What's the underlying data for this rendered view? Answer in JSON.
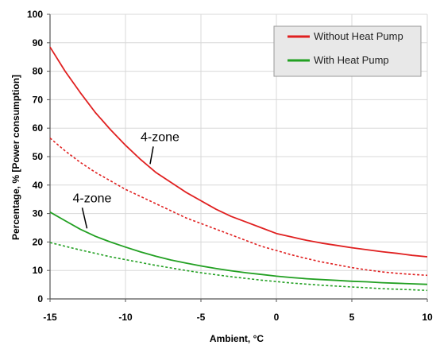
{
  "chart_data": {
    "type": "line",
    "title": "",
    "xlabel": "Ambient, °C",
    "ylabel": "Percentage, % [Power consumption]",
    "xlim": [
      -15,
      10
    ],
    "ylim": [
      0,
      100
    ],
    "xticks": [
      -15,
      -10,
      -5,
      0,
      5,
      10
    ],
    "yticks": [
      0,
      10,
      20,
      30,
      40,
      50,
      60,
      70,
      80,
      90,
      100
    ],
    "grid": true,
    "legend_position": "top-right",
    "legend": [
      {
        "label": "Without Heat Pump",
        "color": "#e02020"
      },
      {
        "label": "With Heat Pump",
        "color": "#22a022"
      }
    ],
    "annotations": [
      {
        "text": "4-zone",
        "x": -9,
        "y": 55.5
      },
      {
        "text": "4-zone",
        "x": -13.5,
        "y": 34
      }
    ],
    "series": [
      {
        "group": "Without Heat Pump",
        "style": "solid",
        "color": "#e02020",
        "x": [
          -15,
          -14,
          -13,
          -12,
          -11,
          -10,
          -9,
          -8,
          -7,
          -6,
          -5,
          -4,
          -3,
          -2,
          -1,
          0,
          1,
          2,
          3,
          4,
          5,
          6,
          7,
          8,
          9,
          10
        ],
        "values": [
          88.5,
          80,
          72.5,
          65.5,
          59.5,
          54,
          49,
          44.5,
          41,
          37.5,
          34.5,
          31.5,
          29,
          27,
          25,
          23,
          21.8,
          20.6,
          19.6,
          18.8,
          18,
          17.3,
          16.6,
          16,
          15.3,
          14.8
        ]
      },
      {
        "group": "Without Heat Pump",
        "style": "dashed",
        "color": "#e02020",
        "x": [
          -15,
          -14,
          -13,
          -12,
          -11,
          -10,
          -9,
          -8,
          -7,
          -6,
          -5,
          -4,
          -3,
          -2,
          -1,
          0,
          1,
          2,
          3,
          4,
          5,
          6,
          7,
          8,
          9,
          10
        ],
        "values": [
          56.5,
          52,
          48,
          44.5,
          41.5,
          38.5,
          36,
          33.5,
          31,
          28.5,
          26.5,
          24.5,
          22.5,
          20.5,
          18.5,
          17,
          15.5,
          14.2,
          13,
          12,
          11,
          10.2,
          9.5,
          9,
          8.6,
          8.3
        ]
      },
      {
        "group": "With Heat Pump",
        "style": "solid",
        "color": "#22a022",
        "x": [
          -15,
          -14,
          -13,
          -12,
          -11,
          -10,
          -9,
          -8,
          -7,
          -6,
          -5,
          -4,
          -3,
          -2,
          -1,
          0,
          1,
          2,
          3,
          4,
          5,
          6,
          7,
          8,
          9,
          10
        ],
        "values": [
          30.5,
          27.5,
          24.5,
          22,
          20,
          18.2,
          16.5,
          15,
          13.7,
          12.6,
          11.6,
          10.7,
          9.9,
          9.2,
          8.6,
          8,
          7.5,
          7.1,
          6.8,
          6.5,
          6.2,
          6,
          5.7,
          5.5,
          5.3,
          5.1
        ]
      },
      {
        "group": "With Heat Pump",
        "style": "dashed",
        "color": "#22a022",
        "x": [
          -15,
          -14,
          -13,
          -12,
          -11,
          -10,
          -9,
          -8,
          -7,
          -6,
          -5,
          -4,
          -3,
          -2,
          -1,
          0,
          1,
          2,
          3,
          4,
          5,
          6,
          7,
          8,
          9,
          10
        ],
        "values": [
          19.8,
          18.5,
          17.2,
          16,
          14.8,
          13.8,
          12.8,
          11.8,
          10.9,
          10,
          9.2,
          8.5,
          7.8,
          7.2,
          6.6,
          6.1,
          5.6,
          5.2,
          4.8,
          4.5,
          4.2,
          3.9,
          3.6,
          3.4,
          3.2,
          3
        ]
      }
    ]
  }
}
